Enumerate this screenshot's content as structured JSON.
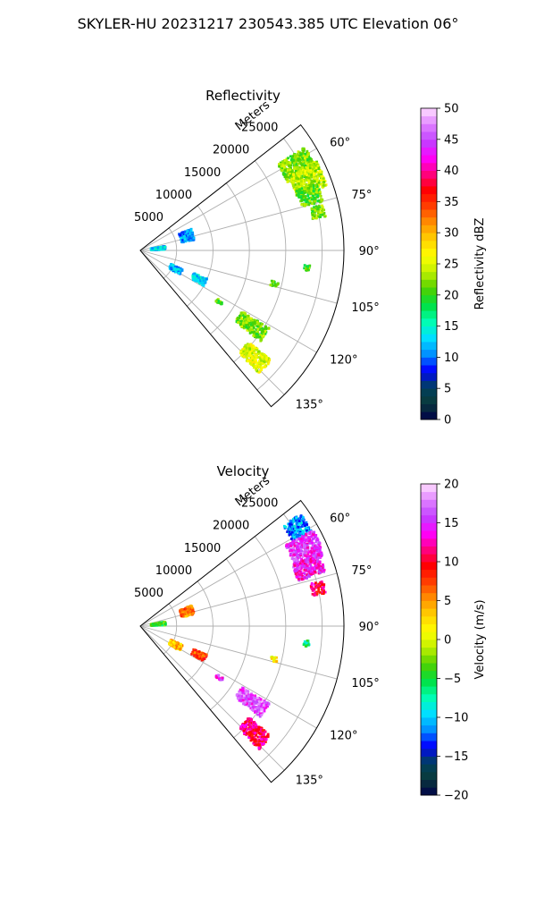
{
  "suptitle": "SKYLER-HU  20231217  230543.385 UTC Elevation 06°",
  "chart_data": [
    {
      "type": "ppi-sector",
      "title": "Reflectivity",
      "range_axis_label": "Meters",
      "range_ticks": [
        5000,
        10000,
        15000,
        20000,
        25000
      ],
      "range_tick_labels": [
        "5000",
        "10000",
        "15000",
        "20000",
        "25000"
      ],
      "r_max": 28000,
      "azimuth_range": [
        52,
        140
      ],
      "azimuth_ticks": [
        60,
        75,
        90,
        105,
        120,
        135
      ],
      "azimuth_tick_labels": [
        "60°",
        "75°",
        "90°",
        "105°",
        "120°",
        "135°"
      ],
      "colorbar": {
        "label": "Reflectivity dBZ",
        "vmin": 0,
        "vmax": 50,
        "ticks": [
          0,
          5,
          10,
          15,
          20,
          25,
          30,
          35,
          40,
          45,
          50
        ],
        "tick_labels": [
          "0",
          "5",
          "10",
          "15",
          "20",
          "25",
          "30",
          "35",
          "40",
          "45",
          "50"
        ],
        "stops": [
          "#00004a",
          "#0a3a3a",
          "#004060",
          "#0000ff",
          "#0090ff",
          "#00e0ff",
          "#00ffb0",
          "#00e040",
          "#50d000",
          "#c0f000",
          "#ffff00",
          "#ffd000",
          "#ff9000",
          "#ff4000",
          "#ff0000",
          "#ff0080",
          "#ff00ff",
          "#c040ff",
          "#e080ff",
          "#ffe0ff"
        ]
      },
      "echoes": [
        {
          "az": 62,
          "r": 24500,
          "value": 22,
          "az_spread": 4,
          "r_spread": 2200
        },
        {
          "az": 67,
          "r": 25000,
          "value": 24,
          "az_spread": 4,
          "r_spread": 2200
        },
        {
          "az": 72,
          "r": 24500,
          "value": 21,
          "az_spread": 3,
          "r_spread": 1500
        },
        {
          "az": 78,
          "r": 25000,
          "value": 22,
          "az_spread": 2,
          "r_spread": 900
        },
        {
          "az": 96,
          "r": 23000,
          "value": 21,
          "az_spread": 1,
          "r_spread": 400
        },
        {
          "az": 73,
          "r": 6700,
          "value": 11,
          "az_spread": 6,
          "r_spread": 900
        },
        {
          "az": 84,
          "r": 2500,
          "value": 13,
          "az_spread": 4,
          "r_spread": 1000
        },
        {
          "az": 118,
          "r": 5500,
          "value": 12,
          "az_spread": 4,
          "r_spread": 900
        },
        {
          "az": 116,
          "r": 9000,
          "value": 13,
          "az_spread": 3,
          "r_spread": 1000
        },
        {
          "az": 124,
          "r": 18500,
          "value": 22,
          "az_spread": 3,
          "r_spread": 2200
        },
        {
          "az": 133,
          "r": 21500,
          "value": 25,
          "az_spread": 3,
          "r_spread": 2000
        },
        {
          "az": 123,
          "r": 13000,
          "value": 21,
          "az_spread": 1,
          "r_spread": 500
        },
        {
          "az": 104,
          "r": 19000,
          "value": 21,
          "az_spread": 1,
          "r_spread": 500
        }
      ]
    },
    {
      "type": "ppi-sector",
      "title": "Velocity",
      "range_axis_label": "Meters",
      "range_ticks": [
        5000,
        10000,
        15000,
        20000,
        25000
      ],
      "range_tick_labels": [
        "5000",
        "10000",
        "15000",
        "20000",
        "25000"
      ],
      "r_max": 28000,
      "azimuth_range": [
        52,
        140
      ],
      "azimuth_ticks": [
        60,
        75,
        90,
        105,
        120,
        135
      ],
      "azimuth_tick_labels": [
        "60°",
        "75°",
        "90°",
        "105°",
        "120°",
        "135°"
      ],
      "colorbar": {
        "label": "Velocity (m/s)",
        "vmin": -20,
        "vmax": 20,
        "ticks": [
          -20,
          -15,
          -10,
          -5,
          0,
          5,
          10,
          15,
          20
        ],
        "tick_labels": [
          "−20",
          "−15",
          "−10",
          "−5",
          "0",
          "5",
          "10",
          "15",
          "20"
        ],
        "stops": [
          "#00004a",
          "#0a3a3a",
          "#004060",
          "#0000ff",
          "#0090ff",
          "#00e0ff",
          "#00ffb0",
          "#00e040",
          "#50d000",
          "#c0f000",
          "#ffff00",
          "#ffd000",
          "#ff9000",
          "#ff4000",
          "#ff0000",
          "#ff0080",
          "#ff00ff",
          "#c040ff",
          "#e080ff",
          "#ffe0ff"
        ]
      },
      "echoes": [
        {
          "az": 58,
          "r": 25500,
          "value": -11,
          "az_spread": 3,
          "r_spread": 1500
        },
        {
          "az": 65,
          "r": 25000,
          "value": 15,
          "az_spread": 4,
          "r_spread": 2200
        },
        {
          "az": 71,
          "r": 24500,
          "value": 14,
          "az_spread": 3,
          "r_spread": 2000
        },
        {
          "az": 78,
          "r": 25000,
          "value": 11,
          "az_spread": 2,
          "r_spread": 900
        },
        {
          "az": 96,
          "r": 23000,
          "value": -6,
          "az_spread": 1,
          "r_spread": 400
        },
        {
          "az": 73,
          "r": 6700,
          "value": 6,
          "az_spread": 5,
          "r_spread": 900
        },
        {
          "az": 84,
          "r": 2500,
          "value": -4,
          "az_spread": 4,
          "r_spread": 1000
        },
        {
          "az": 118,
          "r": 5500,
          "value": 4,
          "az_spread": 4,
          "r_spread": 900
        },
        {
          "az": 116,
          "r": 9000,
          "value": 8,
          "az_spread": 3,
          "r_spread": 1000
        },
        {
          "az": 124,
          "r": 18500,
          "value": 16,
          "az_spread": 3,
          "r_spread": 2200
        },
        {
          "az": 133,
          "r": 21500,
          "value": 11,
          "az_spread": 3,
          "r_spread": 2000
        },
        {
          "az": 123,
          "r": 13000,
          "value": 15,
          "az_spread": 1,
          "r_spread": 500
        },
        {
          "az": 104,
          "r": 19000,
          "value": 2,
          "az_spread": 1,
          "r_spread": 500
        }
      ]
    }
  ]
}
